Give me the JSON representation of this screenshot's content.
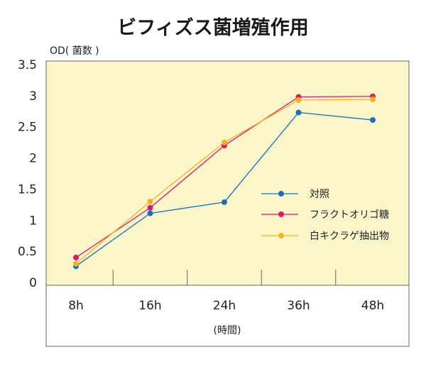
{
  "chart_data": {
    "type": "line",
    "title": "ビフィズス菌増殖作用",
    "ylabel": "OD( 菌数 )",
    "xlabel": "(時間)",
    "categories": [
      "8h",
      "16h",
      "24h",
      "36h",
      "48h"
    ],
    "ylim": [
      0,
      3.5
    ],
    "yticks": [
      "0",
      "0.5",
      "1",
      "1.5",
      "2",
      "2.5",
      "3",
      "3.5"
    ],
    "grid": false,
    "legend_position": "right",
    "background_color": "#fbf6c9",
    "series": [
      {
        "name": "対照",
        "color": "#1a6fb8",
        "values": [
          0.26,
          1.11,
          1.29,
          2.73,
          2.61
        ]
      },
      {
        "name": "フラクトオリゴ糖",
        "color": "#e0186e",
        "values": [
          0.4,
          1.2,
          2.2,
          2.98,
          2.99
        ]
      },
      {
        "name": "白キクラゲ抽出物",
        "color": "#f5b120",
        "values": [
          0.3,
          1.3,
          2.25,
          2.93,
          2.94
        ]
      }
    ]
  }
}
